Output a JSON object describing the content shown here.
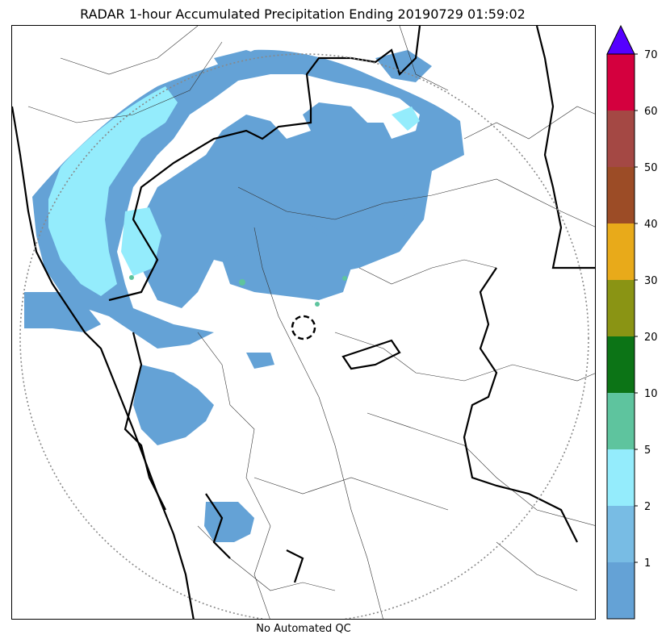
{
  "title": "RADAR 1-hour Accumulated Precipitation Ending 20190729 01:59:02",
  "footer": "No Automated QC",
  "colorbar": {
    "labels": [
      "1",
      "2",
      "5",
      "10",
      "20",
      "30",
      "40",
      "50",
      "60",
      "70"
    ],
    "colors": [
      "#64a2d6",
      "#78bce4",
      "#94ecfc",
      "#5ec49e",
      "#0c7416",
      "#8a9414",
      "#e8aa1a",
      "#9c4c26",
      "#a44844",
      "#d4003e"
    ],
    "extend_color": "#5500ff"
  },
  "map": {
    "precip_colors": {
      "light": "#64a2d6",
      "moderate": "#94ecfc",
      "heavy": "#5ec49e"
    },
    "range_ring_color": "#888888",
    "radar_marker_color": "#000000"
  }
}
